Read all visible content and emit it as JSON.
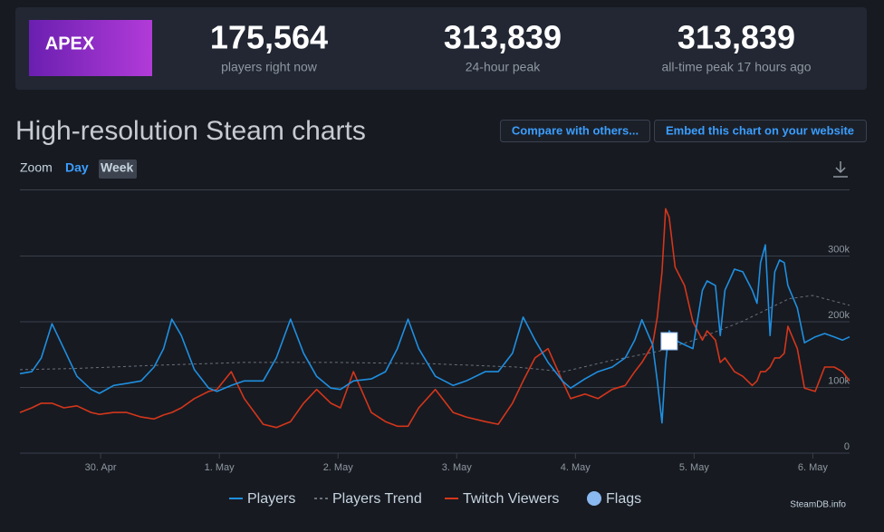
{
  "header": {
    "logo_text": "APEX",
    "stats": [
      {
        "value": "175,564",
        "label": "players right now"
      },
      {
        "value": "313,839",
        "label": "24-hour peak"
      },
      {
        "value": "313,839",
        "label": "all-time peak 17 hours ago"
      }
    ]
  },
  "section_title": "High-resolution Steam charts",
  "buttons": [
    "Compare with others...",
    "Embed this chart on your website"
  ],
  "zoom": {
    "label": "Zoom",
    "options": [
      "Day",
      "Week"
    ]
  },
  "watermark": "SteamDB.info",
  "chart_data": {
    "type": "line",
    "grid": true,
    "xlim": [
      -0.68,
      6.31
    ],
    "xticks": [
      {
        "value": 0,
        "label": "30. Apr"
      },
      {
        "value": 1,
        "label": "1. May"
      },
      {
        "value": 2,
        "label": "2. May"
      },
      {
        "value": 3,
        "label": "3. May"
      },
      {
        "value": 4,
        "label": "4. May"
      },
      {
        "value": 5,
        "label": "5. May"
      },
      {
        "value": 6,
        "label": "6. May"
      }
    ],
    "ylim": [
      0,
      400000
    ],
    "yticks": [
      0,
      {
        "value": 100000,
        "label": "100k"
      },
      {
        "value": 200000,
        "label": "200k"
      },
      {
        "value": 300000,
        "label": "300k"
      }
    ],
    "x": [
      -0.68,
      -0.58,
      -0.5,
      -0.41,
      -0.31,
      -0.2,
      -0.08,
      -0.01,
      0.11,
      0.22,
      0.34,
      0.45,
      0.53,
      0.6,
      0.68,
      0.79,
      0.91,
      0.98,
      1.1,
      1.21,
      1.37,
      1.48,
      1.6,
      1.71,
      1.82,
      1.94,
      2.02,
      2.13,
      2.28,
      2.4,
      2.5,
      2.59,
      2.68,
      2.82,
      2.97,
      3.08,
      3.24,
      3.35,
      3.47,
      3.56,
      3.66,
      3.77,
      3.89,
      3.96,
      4.08,
      4.19,
      4.31,
      4.42,
      4.5,
      4.56,
      4.65,
      4.69,
      4.73,
      4.76,
      4.79,
      4.84,
      4.92,
      4.99,
      5.07,
      5.11,
      5.18,
      5.22,
      5.26,
      5.34,
      5.41,
      5.49,
      5.53,
      5.56,
      5.6,
      5.64,
      5.68,
      5.72,
      5.76,
      5.79,
      5.87,
      5.93,
      6.02,
      6.1,
      6.18,
      6.25,
      6.31
    ],
    "series": [
      {
        "name": "Players",
        "color": "#1f8fe0",
        "values": [
          121000,
          124000,
          145000,
          197000,
          159000,
          117000,
          97000,
          91000,
          103000,
          106000,
          110000,
          131000,
          159000,
          204000,
          179000,
          127000,
          99000,
          94000,
          103000,
          110000,
          110000,
          145000,
          204000,
          152000,
          117000,
          99000,
          97000,
          110000,
          113000,
          124000,
          159000,
          204000,
          159000,
          117000,
          103000,
          110000,
          124000,
          124000,
          152000,
          207000,
          172000,
          138000,
          110000,
          99000,
          113000,
          124000,
          131000,
          145000,
          172000,
          203000,
          165000,
          110000,
          46000,
          138000,
          186000,
          172000,
          165000,
          159000,
          248000,
          262000,
          255000,
          179000,
          248000,
          280000,
          276000,
          248000,
          228000,
          290000,
          317000,
          179000,
          276000,
          294000,
          290000,
          255000,
          221000,
          168000,
          177000,
          182000,
          177000,
          172000,
          177000
        ]
      },
      {
        "name": "Players Trend",
        "color": "#6b7079",
        "dashed": true,
        "x": [
          -0.68,
          -0.2,
          0.5,
          1.2,
          2.0,
          2.8,
          3.5,
          3.9,
          4.3,
          4.7,
          5.0,
          5.4,
          5.8,
          6.0,
          6.31
        ],
        "values": [
          127000,
          129000,
          134000,
          138000,
          138000,
          136000,
          131000,
          124000,
          141000,
          155000,
          172000,
          200000,
          235000,
          240000,
          225000
        ]
      },
      {
        "name": "Twitch Viewers",
        "color": "#d4361b",
        "values": [
          62000,
          69000,
          76000,
          76000,
          69000,
          72000,
          62000,
          59000,
          62000,
          62000,
          55000,
          52000,
          58000,
          62000,
          69000,
          83000,
          94000,
          97000,
          124000,
          83000,
          44000,
          39000,
          48000,
          76000,
          97000,
          76000,
          69000,
          124000,
          62000,
          48000,
          41000,
          41000,
          69000,
          97000,
          62000,
          55000,
          48000,
          44000,
          76000,
          110000,
          145000,
          159000,
          110000,
          83000,
          90000,
          83000,
          97000,
          103000,
          124000,
          138000,
          165000,
          207000,
          276000,
          372000,
          359000,
          283000,
          255000,
          200000,
          172000,
          186000,
          172000,
          138000,
          145000,
          124000,
          117000,
          103000,
          110000,
          124000,
          124000,
          131000,
          145000,
          145000,
          152000,
          193000,
          159000,
          99000,
          94000,
          131000,
          131000,
          124000,
          110000
        ]
      }
    ],
    "flags": {
      "name": "Flags",
      "color": "#8ab8f0",
      "x": [
        4.79
      ]
    }
  }
}
